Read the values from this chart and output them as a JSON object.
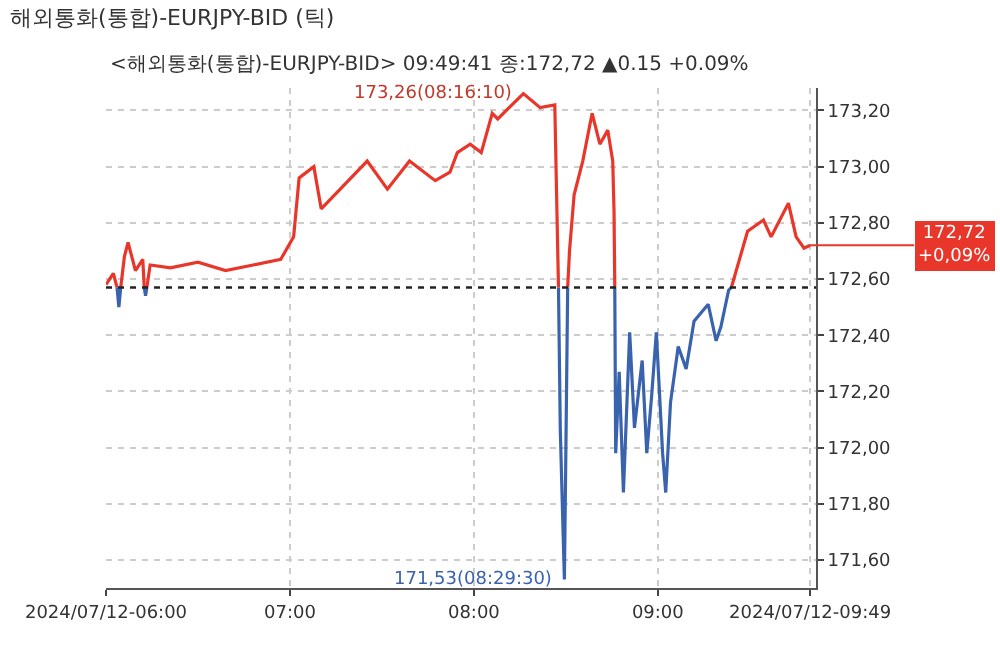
{
  "chart_data": {
    "type": "line",
    "title": "해외통화(통합)-EURJPY-BID (틱)",
    "subtitle": "<해외통화(통합)-EURJPY-BID> 09:49:41 종:172,72 ▲0.15 +0.09%",
    "x": [
      6.0,
      6.04,
      6.06,
      6.07,
      6.08,
      6.1,
      6.12,
      6.16,
      6.2,
      6.208,
      6.215,
      6.222,
      6.24,
      6.35,
      6.5,
      6.65,
      6.8,
      6.95,
      7.02,
      7.05,
      7.13,
      7.17,
      7.42,
      7.53,
      7.65,
      7.79,
      7.87,
      7.91,
      7.98,
      8.04,
      8.1,
      8.13,
      8.269,
      8.36,
      8.44,
      8.46,
      8.47,
      8.492,
      8.5,
      8.51,
      8.52,
      8.545,
      8.592,
      8.643,
      8.685,
      8.728,
      8.755,
      8.762,
      8.766,
      8.771,
      8.79,
      8.813,
      8.847,
      8.873,
      8.915,
      8.94,
      8.966,
      8.992,
      9.026,
      9.043,
      9.069,
      9.111,
      9.154,
      9.197,
      9.274,
      9.317,
      9.343,
      9.385,
      9.4,
      9.488,
      9.574,
      9.616,
      9.71,
      9.752,
      9.795,
      9.828
    ],
    "series": [
      {
        "color": "#e8372a",
        "values": [
          172.58,
          172.62,
          172.57,
          null,
          172.57,
          172.68,
          172.73,
          172.63,
          172.67,
          172.57,
          null,
          172.57,
          172.65,
          172.64,
          172.66,
          172.63,
          172.65,
          172.67,
          172.75,
          172.96,
          173.0,
          172.85,
          173.02,
          172.92,
          173.02,
          172.95,
          172.98,
          173.05,
          173.08,
          173.05,
          173.19,
          173.17,
          173.26,
          173.21,
          173.22,
          172.57,
          null,
          null,
          null,
          172.57,
          172.7,
          172.9,
          173.02,
          173.19,
          173.08,
          173.13,
          173.02,
          172.84,
          172.57,
          null,
          null,
          null,
          null,
          null,
          null,
          null,
          null,
          null,
          null,
          null,
          null,
          null,
          null,
          null,
          null,
          null,
          null,
          null,
          172.57,
          172.77,
          172.81,
          172.75,
          172.87,
          172.75,
          172.71,
          172.72
        ]
      },
      {
        "color": "#3a63ad",
        "values": [
          null,
          null,
          172.57,
          172.5,
          172.57,
          null,
          null,
          null,
          null,
          172.57,
          172.54,
          172.57,
          null,
          null,
          null,
          null,
          null,
          null,
          null,
          null,
          null,
          null,
          null,
          null,
          null,
          null,
          null,
          null,
          null,
          null,
          null,
          null,
          null,
          null,
          null,
          172.57,
          172.06,
          171.53,
          171.98,
          172.57,
          null,
          null,
          null,
          null,
          null,
          null,
          null,
          null,
          172.57,
          171.98,
          172.27,
          171.84,
          172.41,
          172.07,
          172.31,
          171.98,
          172.18,
          172.41,
          171.98,
          171.84,
          172.16,
          172.36,
          172.28,
          172.45,
          172.51,
          172.38,
          172.43,
          172.56,
          172.57,
          null,
          null,
          null,
          null,
          null,
          null,
          null
        ]
      }
    ],
    "xlim": [
      6.0,
      9.86
    ],
    "xticks": [
      {
        "value": 6,
        "label": "2024/07/12-06:00"
      },
      {
        "value": 7,
        "label": "07:00"
      },
      {
        "value": 8,
        "label": "08:00"
      },
      {
        "value": 9,
        "label": "09:00"
      },
      {
        "value": 9.828,
        "label": "2024/07/12-09:49"
      }
    ],
    "ylim": [
      171.5,
      173.28
    ],
    "yticks": [
      {
        "value": 171.6,
        "label": "171,60"
      },
      {
        "value": 171.8,
        "label": "171,80"
      },
      {
        "value": 172.0,
        "label": "172,00"
      },
      {
        "value": 172.2,
        "label": "172,20"
      },
      {
        "value": 172.4,
        "label": "172,40"
      },
      {
        "value": 172.6,
        "label": "172,60"
      },
      {
        "value": 172.8,
        "label": "172,80"
      },
      {
        "value": 173.0,
        "label": "173,00"
      },
      {
        "value": 173.2,
        "label": "173,20"
      }
    ],
    "grid": true,
    "ref_lines": [
      {
        "axis": "y",
        "value": 172.57,
        "line_style": "dotted",
        "color": "#222222"
      }
    ],
    "annotations": [
      {
        "text": "173,26(08:16:10)",
        "x": 8.269,
        "y": 173.26
      },
      {
        "text": "171,53(08:29:30)",
        "x": 8.492,
        "y": 171.53
      },
      {
        "text": "172,72\n+0,09%",
        "x": 9.828,
        "y": 172.72
      }
    ]
  }
}
